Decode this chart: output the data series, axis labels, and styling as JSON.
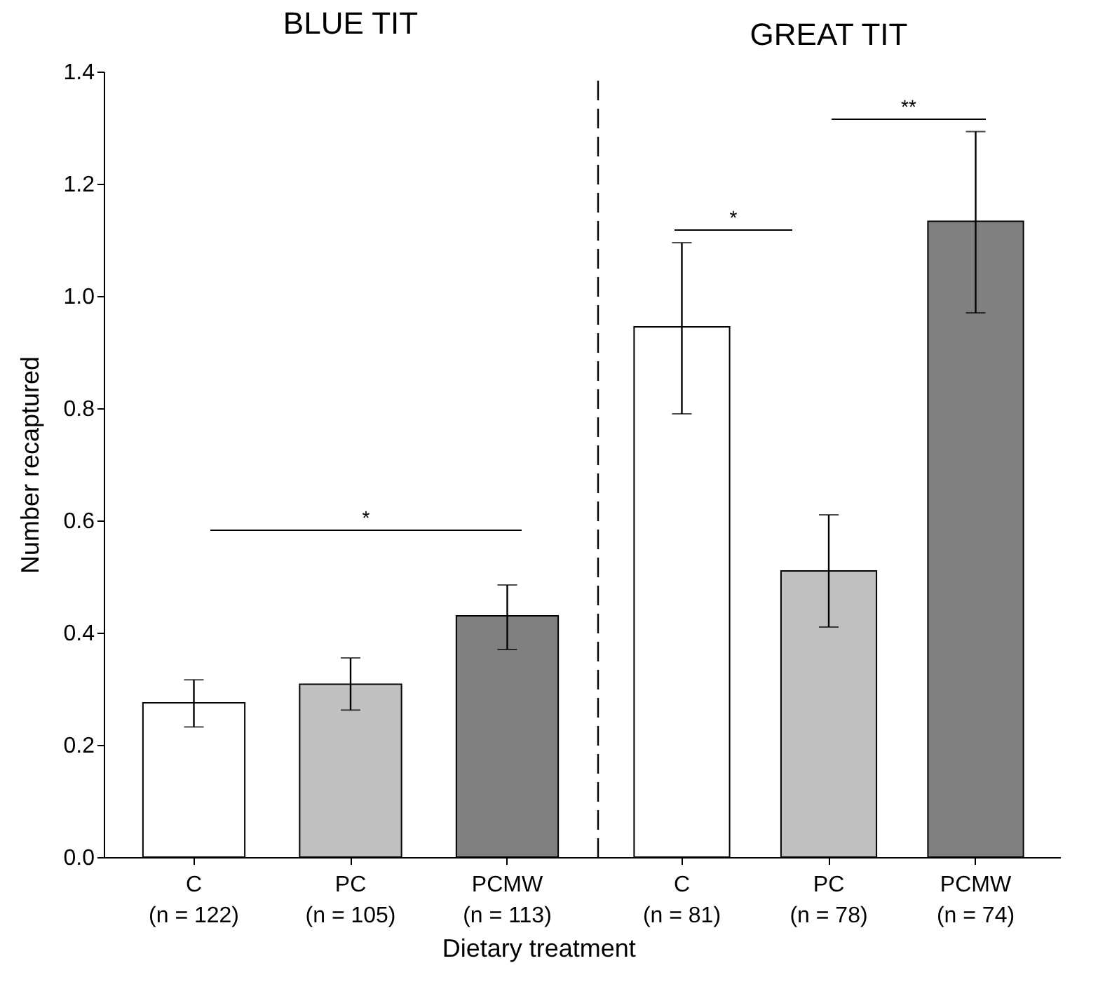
{
  "chart_data": [
    {
      "type": "bar",
      "title": "BLUE TIT",
      "ylabel": "Number recaptured",
      "xlabel": "Dietary treatment",
      "categories": [
        "C\n(n = 122)",
        "PC\n(n = 105)",
        "PCMW\n(n = 113)"
      ],
      "values": [
        0.275,
        0.308,
        0.43
      ],
      "colors": [
        "#ffffff",
        "#c0c0c0",
        "#808080"
      ],
      "errors": [
        [
          0.232,
          0.316
        ],
        [
          0.262,
          0.355
        ],
        [
          0.37,
          0.485
        ]
      ],
      "ylim": [
        0,
        1.4
      ],
      "yticks": [
        {
          "value": 0,
          "label": "0.0"
        },
        0.2,
        0.4,
        0.6,
        0.8,
        {
          "value": 1,
          "label": "1.0"
        },
        1.2,
        1.4
      ],
      "annotations": [
        "*"
      ]
    },
    {
      "type": "bar",
      "title": "GREAT TIT",
      "categories": [
        "C\n(n = 81)",
        "PC\n(n = 78)",
        "PCMW\n(n = 74)"
      ],
      "values": [
        0.945,
        0.51,
        1.133
      ],
      "colors": [
        "#ffffff",
        "#c0c0c0",
        "#808080"
      ],
      "errors": [
        [
          0.79,
          1.095
        ],
        [
          0.41,
          0.61
        ],
        [
          0.97,
          1.293
        ]
      ],
      "ylim": [
        0,
        1.4
      ],
      "tick_labels": "x",
      "annotations": [
        "*",
        "**"
      ]
    }
  ]
}
